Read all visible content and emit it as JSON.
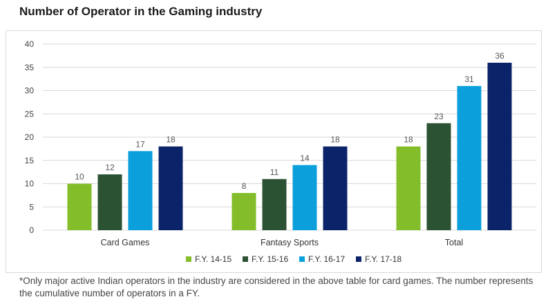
{
  "title": "Number of Operator in the Gaming industry",
  "footnote": "*Only major active Indian operators in the industry are considered in the above table for card games. The number represents the cumulative number of operators in a FY.",
  "chart_data": {
    "type": "bar",
    "title": "Number of Operator in the Gaming industry",
    "categories": [
      "Card Games",
      "Fantasy Sports",
      "Total"
    ],
    "series": [
      {
        "name": "F.Y. 14-15",
        "color": "#84bd2a",
        "values": [
          10,
          8,
          18
        ]
      },
      {
        "name": "F.Y. 15-16",
        "color": "#2c5234",
        "values": [
          12,
          11,
          23
        ]
      },
      {
        "name": "F.Y. 16-17",
        "color": "#0b9fdb",
        "values": [
          17,
          14,
          31
        ]
      },
      {
        "name": "F.Y. 17-18",
        "color": "#0b2469",
        "values": [
          18,
          18,
          36
        ]
      }
    ],
    "ylim": [
      0,
      40
    ],
    "yticks": [
      0,
      5,
      10,
      15,
      20,
      25,
      30,
      35,
      40
    ],
    "grid": true,
    "legend": "bottom"
  }
}
